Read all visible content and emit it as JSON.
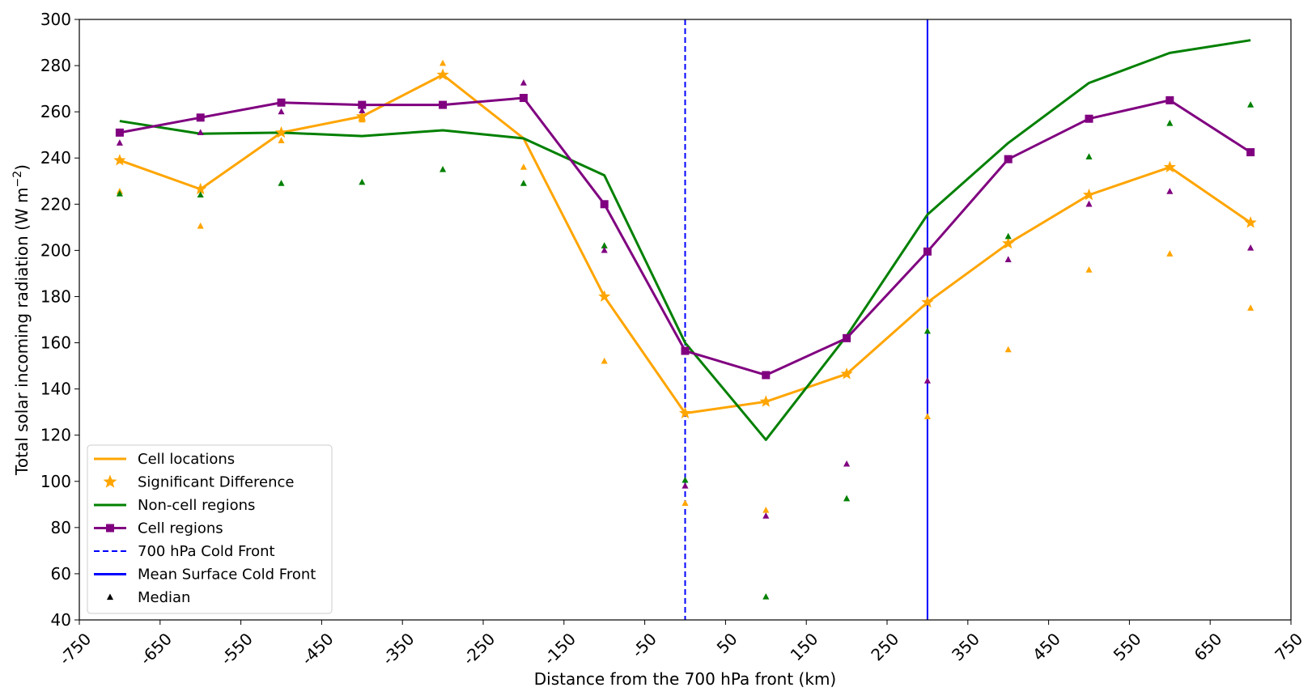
{
  "chart_data": {
    "type": "line",
    "xlabel": "Distance from the 700 hPa front (km)",
    "ylabel_main": "Total solar incoming radiation (W m",
    "ylabel_sup": "−2",
    "ylabel_close": ")",
    "xlim": [
      -750,
      750
    ],
    "ylim": [
      40,
      300
    ],
    "x_ticks": [
      -750,
      -650,
      -550,
      -450,
      -350,
      -250,
      -150,
      -50,
      50,
      150,
      250,
      350,
      450,
      550,
      650,
      750
    ],
    "y_ticks": [
      40,
      60,
      80,
      100,
      120,
      140,
      160,
      180,
      200,
      220,
      240,
      260,
      280,
      300
    ],
    "x": [
      -700,
      -600,
      -500,
      -400,
      -300,
      -200,
      -100,
      0,
      100,
      200,
      300,
      400,
      500,
      600,
      700
    ],
    "series": [
      {
        "name": "Cell locations",
        "color": "#ffa500",
        "values": [
          239,
          226.5,
          251,
          258,
          276,
          248.5,
          180,
          129.5,
          134.5,
          146.5,
          177.5,
          203,
          224,
          236,
          212
        ],
        "marker": "star"
      },
      {
        "name": "Non-cell regions",
        "color": "#008000",
        "values": [
          256,
          250.5,
          251,
          249.5,
          252,
          248.5,
          232.5,
          160,
          118,
          163,
          215.5,
          246.5,
          272.5,
          285.5,
          291
        ],
        "marker": "none"
      },
      {
        "name": "Cell regions",
        "color": "#800080",
        "values": [
          251,
          257.5,
          264,
          263,
          263,
          266,
          220,
          156.5,
          146,
          162,
          199.5,
          239.5,
          257,
          265,
          242.5
        ],
        "marker": "square"
      }
    ],
    "significant_difference": {
      "name": "Significant Difference",
      "color": "#ffa500",
      "indices": [
        0,
        1,
        2,
        3,
        4,
        6,
        7,
        8,
        9,
        10,
        11,
        12,
        13,
        14
      ]
    },
    "medians": [
      {
        "color": "#ffa500",
        "values": [
          225.5,
          210.5,
          247.5,
          256.5,
          281,
          236,
          152,
          90.5,
          87.5,
          null,
          128,
          157,
          191.5,
          198.5,
          175
        ]
      },
      {
        "color": "#008000",
        "values": [
          224.5,
          224,
          229,
          229.5,
          235,
          229,
          202,
          100.5,
          50,
          92.5,
          165,
          206,
          240.5,
          255,
          263
        ]
      },
      {
        "color": "#800080",
        "values": [
          246.5,
          251,
          260,
          260.5,
          null,
          272.5,
          200,
          98,
          85,
          107.5,
          143.5,
          196,
          220,
          225.5,
          201
        ]
      }
    ],
    "vlines": [
      {
        "name": "700 hPa Cold Front",
        "x": 0,
        "color": "#0000ff",
        "style": "dashed"
      },
      {
        "name": "Mean Surface Cold Front",
        "x": 300,
        "color": "#0000ff",
        "style": "solid"
      }
    ],
    "legend": {
      "placement": "lower-left",
      "entries": [
        {
          "label": "Cell locations",
          "kind": "line",
          "color": "#ffa500"
        },
        {
          "label": "Significant Difference",
          "kind": "star",
          "color": "#ffa500"
        },
        {
          "label": "Non-cell regions",
          "kind": "line",
          "color": "#008000"
        },
        {
          "label": "Cell regions",
          "kind": "line-square",
          "color": "#800080"
        },
        {
          "label": "700 hPa Cold Front",
          "kind": "dashed",
          "color": "#0000ff"
        },
        {
          "label": "Mean Surface Cold Front",
          "kind": "line",
          "color": "#0000ff"
        },
        {
          "label": "Median",
          "kind": "triangle",
          "color": "#000000"
        }
      ]
    },
    "grid": false
  }
}
